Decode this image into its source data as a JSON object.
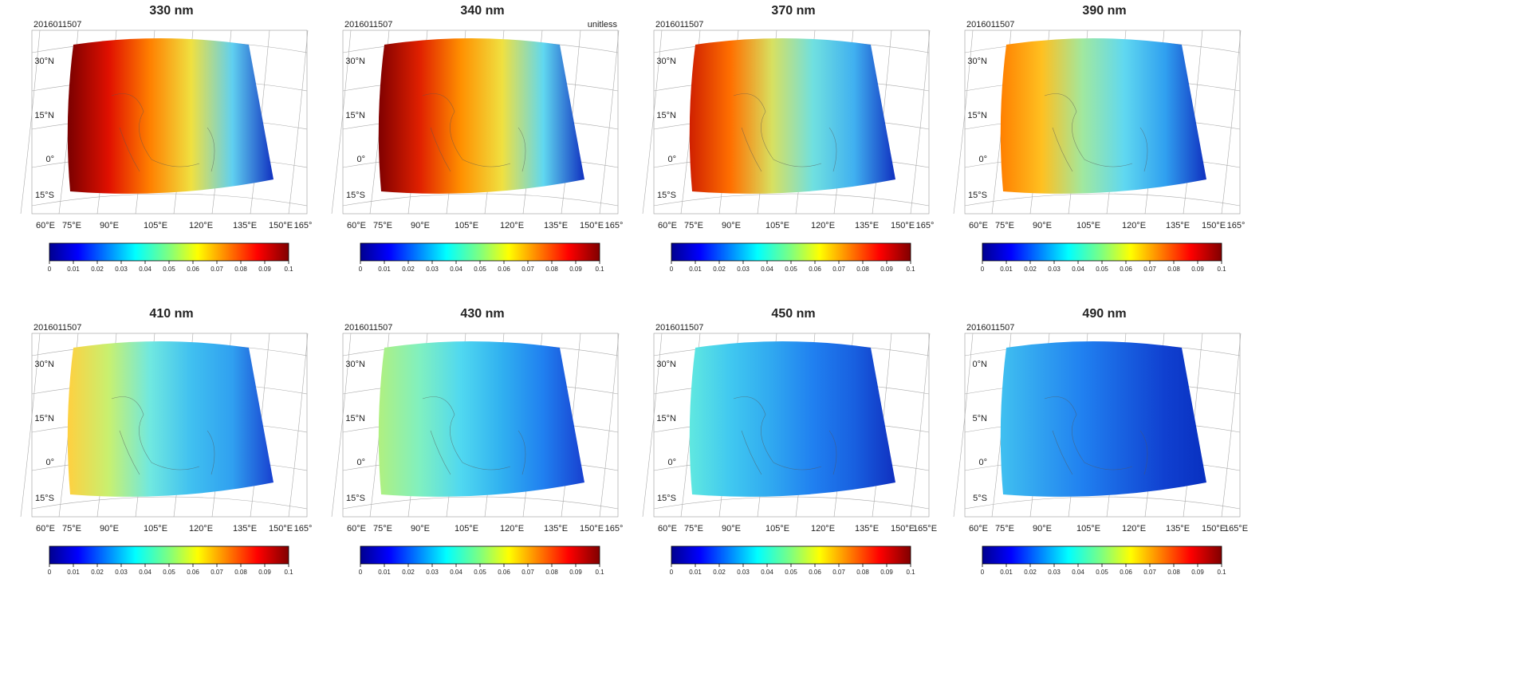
{
  "panels": [
    {
      "title": "330 nm",
      "date": "2016011507",
      "lat_labels": [
        "30°N",
        "15°N",
        "0°",
        "15°S"
      ],
      "lon_labels": [
        "60°E",
        "75°E",
        "90°E",
        "105°E",
        "120°E",
        "135°E",
        "150°E",
        "165°"
      ],
      "colorbar": {
        "range": [
          0,
          0.1
        ],
        "ticks": [
          0,
          0.01,
          0.02,
          0.03,
          0.04,
          0.05,
          0.06,
          0.07,
          0.08,
          0.09,
          0.1
        ]
      }
    },
    {
      "title": "340 nm",
      "date": "2016011507",
      "note": "unitless",
      "lat_labels": [
        "30°N",
        "15°N",
        "0°",
        "15°S"
      ],
      "lon_labels": [
        "60°E",
        "75°E",
        "90°E",
        "105°E",
        "120°E",
        "135°E",
        "150°E",
        "165°"
      ],
      "colorbar": {
        "range": [
          0,
          0.1
        ],
        "ticks": [
          0,
          0.01,
          0.02,
          0.03,
          0.04,
          0.05,
          0.06,
          0.07,
          0.08,
          0.09,
          0.1
        ]
      }
    },
    {
      "title": "370 nm",
      "date": "2016011507",
      "lat_labels": [
        "30°N",
        "15°N",
        "0°",
        "15°S"
      ],
      "lon_labels": [
        "60°E",
        "75°E",
        "90°E",
        "105°E",
        "120°E",
        "135°E",
        "150°E",
        "165°"
      ],
      "colorbar": {
        "range": [
          0,
          0.1
        ],
        "ticks": [
          0,
          0.01,
          0.02,
          0.03,
          0.04,
          0.05,
          0.06,
          0.07,
          0.08,
          0.09,
          0.1
        ]
      }
    },
    {
      "title": "390 nm",
      "date": "2016011507",
      "lat_labels": [
        "30°N",
        "15°N",
        "0°",
        "15°S"
      ],
      "lon_labels": [
        "60°E",
        "75°E",
        "90°E",
        "105°E",
        "120°E",
        "135°E",
        "150°E",
        "165°"
      ],
      "colorbar": {
        "range": [
          0,
          0.1
        ],
        "ticks": [
          0,
          0.01,
          0.02,
          0.03,
          0.04,
          0.05,
          0.06,
          0.07,
          0.08,
          0.09,
          0.1
        ]
      }
    },
    {
      "title": "410 nm",
      "date": "2016011507",
      "lat_labels": [
        "30°N",
        "15°N",
        "0°",
        "15°S"
      ],
      "lon_labels": [
        "60°E",
        "75°E",
        "90°E",
        "105°E",
        "120°E",
        "135°E",
        "150°E",
        "165°"
      ],
      "colorbar": {
        "range": [
          0,
          0.1
        ],
        "ticks": [
          0,
          0.01,
          0.02,
          0.03,
          0.04,
          0.05,
          0.06,
          0.07,
          0.08,
          0.09,
          0.1
        ]
      }
    },
    {
      "title": "430 nm",
      "date": "2016011507",
      "lat_labels": [
        "30°N",
        "15°N",
        "0°",
        "15°S"
      ],
      "lon_labels": [
        "60°E",
        "75°E",
        "90°E",
        "105°E",
        "120°E",
        "135°E",
        "150°E",
        "165°"
      ],
      "colorbar": {
        "range": [
          0,
          0.1
        ],
        "ticks": [
          0,
          0.01,
          0.02,
          0.03,
          0.04,
          0.05,
          0.06,
          0.07,
          0.08,
          0.09,
          0.1
        ]
      }
    },
    {
      "title": "450 nm",
      "date": "2016011507",
      "lat_labels": [
        "30°N",
        "15°N",
        "0°",
        "15°S"
      ],
      "lon_labels": [
        "60°E",
        "75°E",
        "90°E",
        "105°E",
        "120°E",
        "135°E",
        "150°E",
        "165°E"
      ],
      "colorbar": {
        "range": [
          0,
          0.1
        ],
        "ticks": [
          0,
          0.01,
          0.02,
          0.03,
          0.04,
          0.05,
          0.06,
          0.07,
          0.08,
          0.09,
          0.1
        ]
      }
    },
    {
      "title": "490 nm",
      "date": "2016011507",
      "lat_labels": [
        "0°N",
        "5°N",
        "0°",
        "5°S"
      ],
      "lon_labels": [
        "60°E",
        "75°E",
        "90°E",
        "105°E",
        "120°E",
        "135°E",
        "150°E",
        "165°E"
      ],
      "colorbar": {
        "range": [
          0,
          0.1
        ],
        "ticks": [
          0,
          0.01,
          0.02,
          0.03,
          0.04,
          0.05,
          0.06,
          0.07,
          0.08,
          0.09,
          0.1
        ]
      }
    }
  ]
}
